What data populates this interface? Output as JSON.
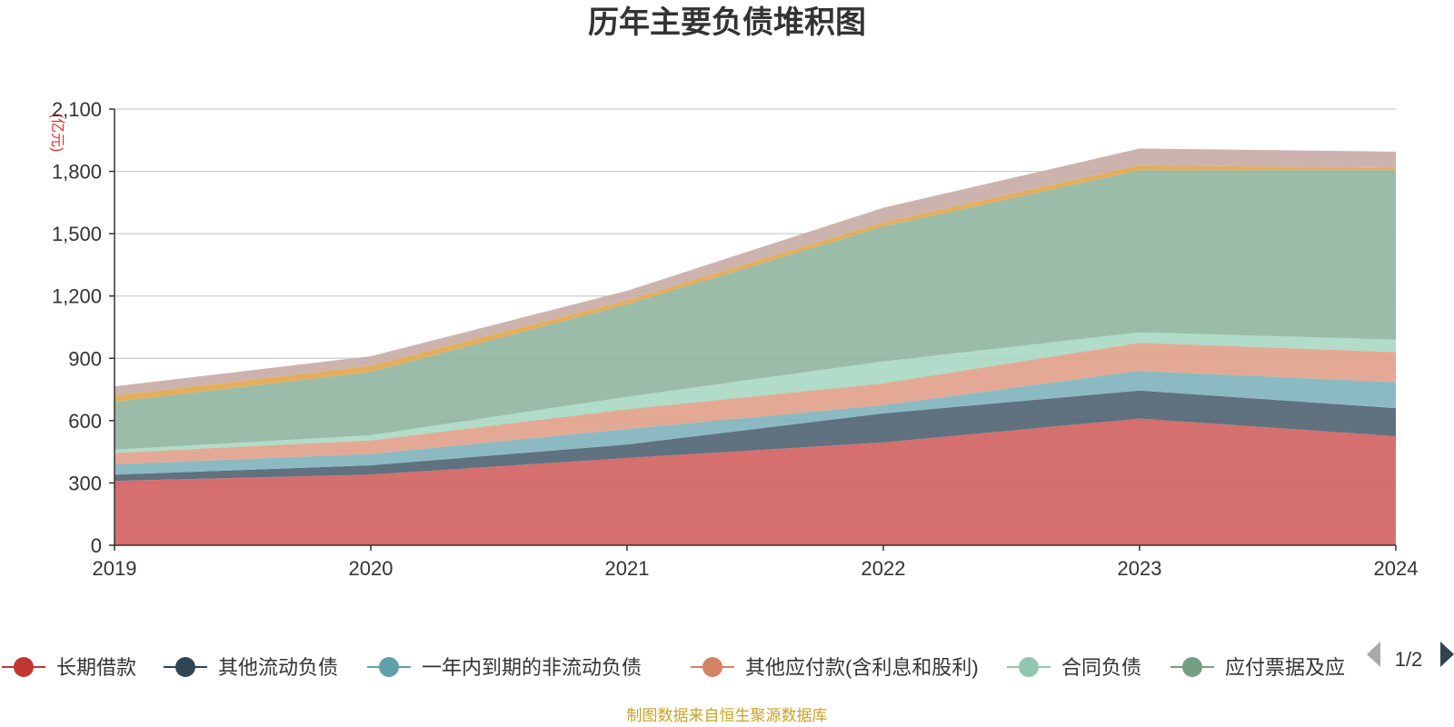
{
  "chart_data": {
    "type": "area",
    "stacked": true,
    "title": "历年主要负债堆积图",
    "unit": "(亿元)",
    "x": [
      "2019",
      "2020",
      "2021",
      "2022",
      "2023",
      "2024"
    ],
    "ylim": [
      0,
      2100
    ],
    "yticks": [
      "0",
      "300",
      "600",
      "900",
      "1,200",
      "1,500",
      "1,800",
      "2,100"
    ],
    "ytick_values": [
      0,
      300,
      600,
      900,
      1200,
      1500,
      1800,
      2100
    ],
    "grid": true,
    "series": [
      {
        "name": "长期借款",
        "color": "#d0605e",
        "values": [
          310,
          340,
          420,
          495,
          610,
          525
        ]
      },
      {
        "name": "其他流动负债",
        "color": "#4f6272",
        "values": [
          30,
          45,
          65,
          140,
          135,
          135
        ]
      },
      {
        "name": "一年内到期的非流动负债",
        "color": "#7fb3bd",
        "values": [
          50,
          55,
          75,
          40,
          95,
          125
        ]
      },
      {
        "name": "其他应付款(含利息和股利)",
        "color": "#e0a08a",
        "values": [
          55,
          65,
          95,
          105,
          135,
          145
        ]
      },
      {
        "name": "合同负债",
        "color": "#a8d8c4",
        "values": [
          15,
          25,
          60,
          105,
          50,
          60
        ]
      },
      {
        "name": "应付票据及应付账款",
        "color": "#8fb59e",
        "values": [
          230,
          305,
          445,
          650,
          780,
          815
        ]
      },
      {
        "name": "",
        "color": "#e0a64e",
        "values": [
          30,
          30,
          20,
          20,
          25,
          10
        ]
      },
      {
        "name": "",
        "color": "#c8aba5",
        "values": [
          45,
          45,
          45,
          70,
          80,
          80
        ]
      }
    ],
    "legend": {
      "position": "bottom",
      "page": "1/2",
      "items": [
        {
          "label": "长期借款",
          "color": "#c23531"
        },
        {
          "label": "其他流动负债",
          "color": "#2f4554"
        },
        {
          "label": "一年内到期的非流动负债",
          "color": "#61a0a8"
        },
        {
          "label": "其他应付款(含利息和股利)",
          "color": "#d48265"
        },
        {
          "label": "合同负债",
          "color": "#91c7ae"
        },
        {
          "label": "应付票据及应",
          "color": "#749f83"
        }
      ]
    },
    "source": "制图数据来自恒生聚源数据库"
  }
}
